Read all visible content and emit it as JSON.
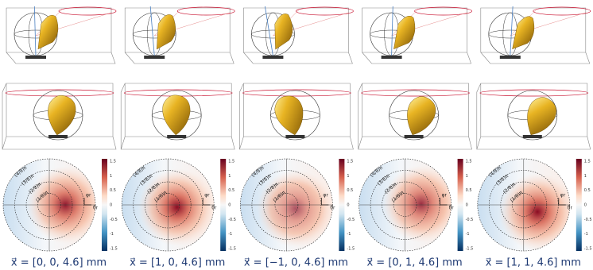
{
  "panels": [
    {
      "caption": "x⃗ = [0, 0, 4.6] mm"
    },
    {
      "caption": "x⃗ = [1, 0, 4.6] mm"
    },
    {
      "caption": "x⃗ = [−1, 0, 4.6] mm"
    },
    {
      "caption": "x⃗ = [0, 1, 4.6] mm"
    },
    {
      "caption": "x⃗ = [1, 1, 4.6] mm"
    }
  ],
  "ring_labels": [
    "(1/8)π",
    "(2/8)π",
    "(3/8)π",
    "(4/8)π"
  ],
  "axis_labels": {
    "phi": "φr",
    "theta": "θr"
  },
  "colorbar_ticks": [
    "1.5",
    "1",
    "0.5",
    "0",
    "-0.5",
    "-1",
    "-1.5"
  ]
}
